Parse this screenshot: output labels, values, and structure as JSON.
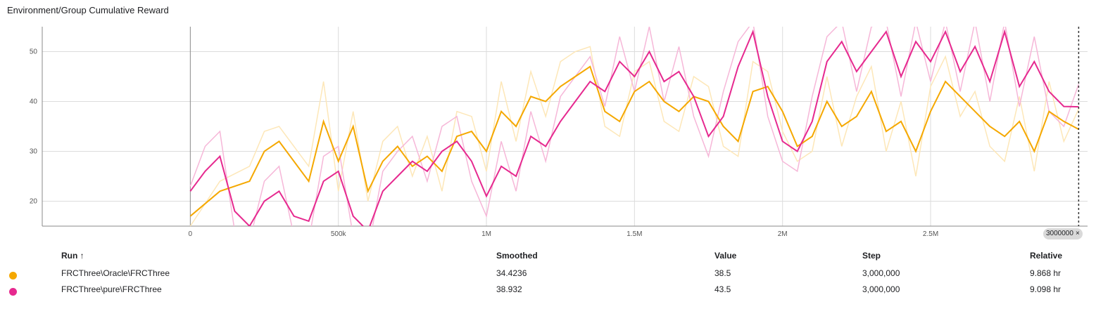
{
  "title": "Environment/Group Cumulative Reward",
  "selected_step_badge": {
    "label": "3000000",
    "close": "×"
  },
  "table": {
    "headers": {
      "run": "Run ↑",
      "smoothed": "Smoothed",
      "value": "Value",
      "step": "Step",
      "relative": "Relative"
    },
    "rows": [
      {
        "run": "FRCThree\\Oracle\\FRCThree",
        "smoothed": "34.4236",
        "value": "38.5",
        "step": "3,000,000",
        "relative": "9.868 hr",
        "color": "#f5a800"
      },
      {
        "run": "FRCThree\\pure\\FRCThree",
        "smoothed": "38.932",
        "value": "43.5",
        "step": "3,000,000",
        "relative": "9.098 hr",
        "color": "#e6298f"
      }
    ]
  },
  "chart_data": {
    "type": "line",
    "xlim": [
      -500000,
      3030000
    ],
    "ylim": [
      15,
      55
    ],
    "x_ticks": [
      0,
      500000,
      1000000,
      1500000,
      2000000,
      2500000
    ],
    "x_tick_labels": [
      "0",
      "500k",
      "1M",
      "1.5M",
      "2M",
      "2.5M"
    ],
    "y_ticks": [
      20,
      30,
      40,
      50
    ],
    "y_tick_labels": [
      "20",
      "30",
      "40",
      "50"
    ],
    "grid": true,
    "cursor_step": 3000000,
    "series": [
      {
        "name": "FRCThree\\Oracle\\FRCThree",
        "color": "#f5a800",
        "raw_color": "#fde7b8",
        "x": [
          0,
          100000,
          200000,
          250000,
          300000,
          400000,
          450000,
          500000,
          550000,
          600000,
          650000,
          700000,
          750000,
          800000,
          850000,
          900000,
          950000,
          1000000,
          1050000,
          1100000,
          1150000,
          1200000,
          1250000,
          1300000,
          1350000,
          1400000,
          1450000,
          1500000,
          1550000,
          1600000,
          1650000,
          1700000,
          1750000,
          1800000,
          1850000,
          1900000,
          1950000,
          2000000,
          2050000,
          2100000,
          2150000,
          2200000,
          2250000,
          2300000,
          2350000,
          2400000,
          2450000,
          2500000,
          2550000,
          2600000,
          2650000,
          2700000,
          2750000,
          2800000,
          2850000,
          2900000,
          2950000,
          3000000
        ],
        "smoothed": [
          17,
          22,
          24,
          30,
          32,
          24,
          36,
          28,
          35,
          22,
          28,
          31,
          27,
          29,
          26,
          33,
          34,
          30,
          38,
          35,
          41,
          40,
          43,
          45,
          47,
          38,
          36,
          42,
          44,
          40,
          38,
          41,
          40,
          35,
          32,
          42,
          43,
          38,
          31,
          33,
          40,
          35,
          37,
          42,
          34,
          36,
          30,
          38,
          44,
          41,
          38,
          35,
          33,
          36,
          30,
          38,
          36,
          34.4236
        ],
        "raw": [
          15,
          24,
          27,
          34,
          35,
          27,
          44,
          22,
          38,
          20,
          32,
          35,
          25,
          33,
          22,
          38,
          37,
          26,
          44,
          32,
          46,
          37,
          48,
          50,
          51,
          35,
          33,
          46,
          48,
          36,
          34,
          45,
          43,
          31,
          29,
          48,
          46,
          34,
          28,
          30,
          45,
          31,
          41,
          47,
          30,
          40,
          25,
          43,
          49,
          37,
          42,
          31,
          28,
          41,
          26,
          44,
          32,
          38.5
        ]
      },
      {
        "name": "FRCThree\\pure\\FRCThree",
        "color": "#e6298f",
        "raw_color": "#f6b7d8",
        "x": [
          0,
          50000,
          100000,
          150000,
          200000,
          250000,
          300000,
          350000,
          400000,
          450000,
          500000,
          550000,
          600000,
          650000,
          700000,
          750000,
          800000,
          850000,
          900000,
          950000,
          1000000,
          1050000,
          1100000,
          1150000,
          1200000,
          1250000,
          1300000,
          1350000,
          1400000,
          1450000,
          1500000,
          1550000,
          1600000,
          1650000,
          1700000,
          1750000,
          1800000,
          1850000,
          1900000,
          1950000,
          2000000,
          2050000,
          2100000,
          2150000,
          2200000,
          2250000,
          2300000,
          2350000,
          2400000,
          2450000,
          2500000,
          2550000,
          2600000,
          2650000,
          2700000,
          2750000,
          2800000,
          2850000,
          2900000,
          2950000,
          3000000
        ],
        "smoothed": [
          22,
          26,
          29,
          18,
          15,
          20,
          22,
          17,
          16,
          24,
          26,
          17,
          14,
          22,
          25,
          28,
          26,
          30,
          32,
          28,
          21,
          27,
          25,
          33,
          31,
          36,
          40,
          44,
          42,
          48,
          45,
          50,
          44,
          46,
          41,
          33,
          37,
          47,
          54,
          41,
          32,
          30,
          36,
          48,
          52,
          46,
          50,
          54,
          45,
          52,
          48,
          54,
          46,
          51,
          44,
          54,
          43,
          48,
          42,
          39,
          38.932
        ],
        "raw": [
          23,
          31,
          34,
          14,
          12,
          24,
          27,
          13,
          12,
          29,
          31,
          13,
          10,
          26,
          30,
          33,
          24,
          35,
          37,
          24,
          17,
          32,
          22,
          38,
          28,
          41,
          45,
          49,
          39,
          53,
          42,
          55,
          40,
          51,
          37,
          29,
          42,
          52,
          56,
          37,
          28,
          26,
          41,
          53,
          56,
          42,
          55,
          56,
          41,
          56,
          44,
          56,
          42,
          56,
          40,
          56,
          39,
          53,
          38,
          35,
          43.5
        ]
      }
    ]
  }
}
